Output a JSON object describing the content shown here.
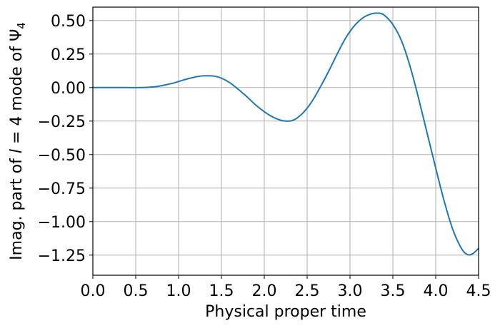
{
  "chart_data": {
    "type": "line",
    "title": "",
    "xlabel": "Physical proper time",
    "ylabel_parts": {
      "prefix": "Imag. part of ",
      "l_symbol": "l",
      "l_value": " = 4 mode of ",
      "psi": "Ψ",
      "psi_subscript": "4"
    },
    "xlim": [
      0.0,
      4.5
    ],
    "ylim": [
      -1.4,
      0.6
    ],
    "xticks": [
      0.0,
      0.5,
      1.0,
      1.5,
      2.0,
      2.5,
      3.0,
      3.5,
      4.0,
      4.5
    ],
    "xtick_labels": [
      "0.0",
      "0.5",
      "1.0",
      "1.5",
      "2.0",
      "2.5",
      "3.0",
      "3.5",
      "4.0",
      "4.5"
    ],
    "yticks": [
      0.5,
      0.25,
      0.0,
      -0.25,
      -0.5,
      -0.75,
      -1.0,
      -1.25
    ],
    "ytick_labels": [
      "0.50",
      "0.25",
      "0.00",
      "−0.25",
      "−0.50",
      "−0.75",
      "−1.00",
      "−1.25"
    ],
    "grid": true,
    "series": [
      {
        "color": "#1f77b4",
        "x": [
          0.0,
          0.2,
          0.4,
          0.55,
          0.65,
          0.75,
          0.85,
          0.95,
          1.05,
          1.15,
          1.25,
          1.33,
          1.42,
          1.5,
          1.6,
          1.7,
          1.8,
          1.9,
          2.0,
          2.1,
          2.2,
          2.28,
          2.35,
          2.45,
          2.55,
          2.65,
          2.75,
          2.85,
          2.95,
          3.05,
          3.15,
          3.25,
          3.33,
          3.4,
          3.5,
          3.6,
          3.7,
          3.8,
          3.9,
          4.0,
          4.1,
          4.2,
          4.3,
          4.37,
          4.43,
          4.5
        ],
        "y": [
          0.0,
          0.0,
          0.0,
          0.0,
          0.002,
          0.008,
          0.02,
          0.035,
          0.055,
          0.072,
          0.085,
          0.088,
          0.085,
          0.07,
          0.035,
          -0.015,
          -0.07,
          -0.13,
          -0.18,
          -0.22,
          -0.245,
          -0.25,
          -0.24,
          -0.19,
          -0.11,
          0.0,
          0.12,
          0.25,
          0.37,
          0.46,
          0.52,
          0.55,
          0.555,
          0.54,
          0.47,
          0.35,
          0.16,
          -0.08,
          -0.34,
          -0.6,
          -0.85,
          -1.06,
          -1.2,
          -1.245,
          -1.24,
          -1.2
        ]
      }
    ]
  }
}
